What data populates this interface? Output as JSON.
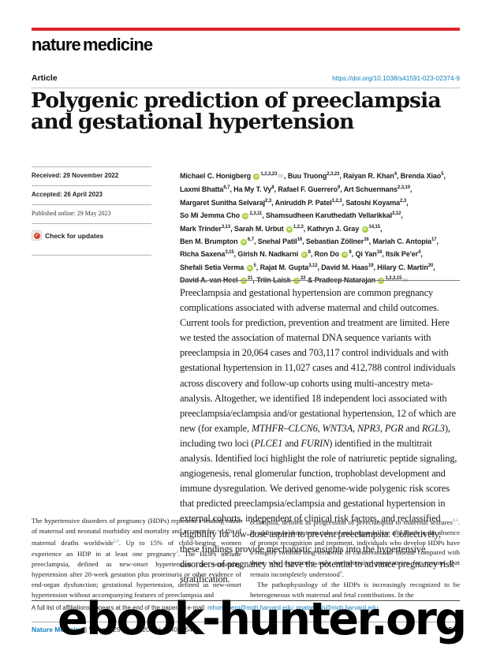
{
  "masthead": {
    "logo": "nature medicine",
    "kicker": "Article",
    "doi": "https://doi.org/10.1038/s41591-023-02374-9"
  },
  "title": "Polygenic prediction of preeclampsia and gestational hypertension",
  "article_info": [
    {
      "label": "Received: 29 November 2022",
      "serif": false
    },
    {
      "label": "Accepted: 26 April 2023",
      "serif": false
    },
    {
      "label": "Published online: 29 May 2023",
      "serif": true
    }
  ],
  "check_updates_label": "Check for updates",
  "authors": {
    "lines": [
      [
        {
          "t": "Michael C. Honigberg "
        },
        {
          "i": "orcid"
        },
        {
          "s": "1,2,3,23"
        },
        {
          "i": "mail"
        },
        {
          "t": ", Buu Truong"
        },
        {
          "s": "2,3,23"
        },
        {
          "t": ", Raiyan R. Khan"
        },
        {
          "s": "4"
        },
        {
          "t": ", Brenda Xiao"
        },
        {
          "s": "5"
        },
        {
          "t": ","
        }
      ],
      [
        {
          "t": "Laxmi Bhatta"
        },
        {
          "s": "6,7"
        },
        {
          "t": ", Ha My T. Vy"
        },
        {
          "s": "8"
        },
        {
          "t": ", Rafael F. Guerrero"
        },
        {
          "s": "9"
        },
        {
          "t": ", Art Schuermans"
        },
        {
          "s": "2,3,10"
        },
        {
          "t": ","
        }
      ],
      [
        {
          "t": "Margaret Sunitha Selvaraj"
        },
        {
          "s": "2,3"
        },
        {
          "t": ", Aniruddh P. Patel"
        },
        {
          "s": "1,2,3"
        },
        {
          "t": ", Satoshi Koyama"
        },
        {
          "s": "2,3"
        },
        {
          "t": ","
        }
      ],
      [
        {
          "t": "So Mi Jemma Cho "
        },
        {
          "i": "orcid"
        },
        {
          "s": "2,3,11"
        },
        {
          "t": ", Shamsudheen Karuthedath Vellarikkal"
        },
        {
          "s": "3,12"
        },
        {
          "t": ","
        }
      ],
      [
        {
          "t": "Mark Trinder"
        },
        {
          "s": "3,13"
        },
        {
          "t": ", Sarah M. Urbut "
        },
        {
          "i": "orcid"
        },
        {
          "s": "1,2,3"
        },
        {
          "t": ", Kathryn J. Gray "
        },
        {
          "i": "orcid"
        },
        {
          "s": "14,15"
        },
        {
          "t": ","
        }
      ],
      [
        {
          "t": "Ben M. Brumpton "
        },
        {
          "i": "orcid"
        },
        {
          "s": "6,7"
        },
        {
          "t": ", Snehal Patil"
        },
        {
          "s": "16"
        },
        {
          "t": ", Sebastian Zöllner"
        },
        {
          "s": "16"
        },
        {
          "t": ", Mariah C. Antopia"
        },
        {
          "s": "17"
        },
        {
          "t": ","
        }
      ],
      [
        {
          "t": "Richa Saxena"
        },
        {
          "s": "3,15"
        },
        {
          "t": ", Girish N. Nadkarni "
        },
        {
          "i": "orcid"
        },
        {
          "s": "8"
        },
        {
          "t": ", Ron Do "
        },
        {
          "i": "orcid"
        },
        {
          "s": "8"
        },
        {
          "t": ", Qi Yan"
        },
        {
          "s": "18"
        },
        {
          "t": ", Itsik Pe'er"
        },
        {
          "s": "4"
        },
        {
          "t": ","
        }
      ],
      [
        {
          "t": "Shefali Setia Verma "
        },
        {
          "i": "orcid"
        },
        {
          "s": "5"
        },
        {
          "t": ", Rajat M. Gupta"
        },
        {
          "s": "3,12"
        },
        {
          "t": ", David M. Haas"
        },
        {
          "s": "19"
        },
        {
          "t": ", Hilary C. Martin"
        },
        {
          "s": "20"
        },
        {
          "t": ","
        }
      ],
      [
        {
          "t": "David A. van Heel "
        },
        {
          "i": "orcid"
        },
        {
          "s": "21"
        },
        {
          "t": ", Triin Laisk "
        },
        {
          "i": "orcid"
        },
        {
          "s": "22"
        },
        {
          "t": " & Pradeep Natarajan "
        },
        {
          "i": "orcid"
        },
        {
          "s": "1,2,3,15"
        },
        {
          "i": "mail"
        }
      ]
    ]
  },
  "abstract": "Preeclampsia and gestational hypertension are common pregnancy complications associated with adverse maternal and child outcomes. Current tools for prediction, prevention and treatment are limited. Here we tested the association of maternal DNA sequence variants with preeclampsia in 20,064 cases and 703,117 control individuals and with gestational hypertension in 11,027 cases and 412,788 control individuals across discovery and follow-up cohorts using multi-ancestry meta-analysis. Altogether, we identified 18 independent loci associated with preeclampsia/eclampsia and/or gestational hypertension, 12 of which are new (for example, *MTHFR–CLCN6*, *WNT3A*, *NPR3*, *PGR* and *RGL3*), including two loci (*PLCE1* and *FURIN*) identified in the multitrait analysis. Identified loci highlight the role of natriuretic peptide signaling, angiogenesis, renal glomerular function, trophoblast development and immune dysregulation. We derived genome-wide polygenic risk scores that predicted preeclampsia/eclampsia and gestational hypertension in external cohorts, independent of clinical risk factors, and reclassified eligibility for low-dose aspirin to prevent preeclampsia. Collectively, these findings provide mechanistic insights into the hypertensive disorders of pregnancy and have the potential to advance pregnancy risk stratification.",
  "body": {
    "left": [
      "The hypertensive disorders of pregnancy (HDPs) represent a leading cause of maternal and neonatal morbidity and mortality and account for ~14% of maternal deaths worldwide^{1,2}. Up to 15% of child-bearing women experience an HDP in at least one pregnancy^{3}. The HDPs include preeclampsia, defined as new-onset hypertension or worsening hypertension after 20-week gestation plus proteinuria or other evidence of end-organ dysfunction; gestational hypertension, defined as new-onset hypertension without accompanying features of preeclampsia and"
    ],
    "right": [
      "eclampsia, defined as progression of preeclampsia to maternal seizures^{4,5}. In addition to short-term risks of end-organ failure and death in the absence of prompt recognition and treatment, individuals who develop HDPs have a roughly twofold long-term risk of cardiovascular disease compared with those who experience only normotensive pregnancies for reasons that remain incompletely understood^{6}.",
      "The pathophysiology of the HDPs is increasingly recognized to be heterogeneous with maternal and fetal contributions. In the"
    ]
  },
  "footer": {
    "affiliation": [
      {
        "t": "A full list of affiliations appears at the end of the paper. "
      },
      {
        "i": "mail"
      },
      {
        "t": "e-mail: "
      },
      {
        "link": "mhonigberg@mgh.harvard.edu"
      },
      {
        "t": "; "
      },
      {
        "link": "pnatarajan@mgh.harvard.edu"
      }
    ],
    "journal_name": "Nature Medicine",
    "journal_issue": " | Volume 29 | June 2023 | 1540–1549",
    "page_number": "1540"
  },
  "watermark": "ebook-hunter.org",
  "colors": {
    "nature_red": "#e0242f",
    "link_blue": "#0f7dbd",
    "orcid_green": "#a6ce39"
  }
}
